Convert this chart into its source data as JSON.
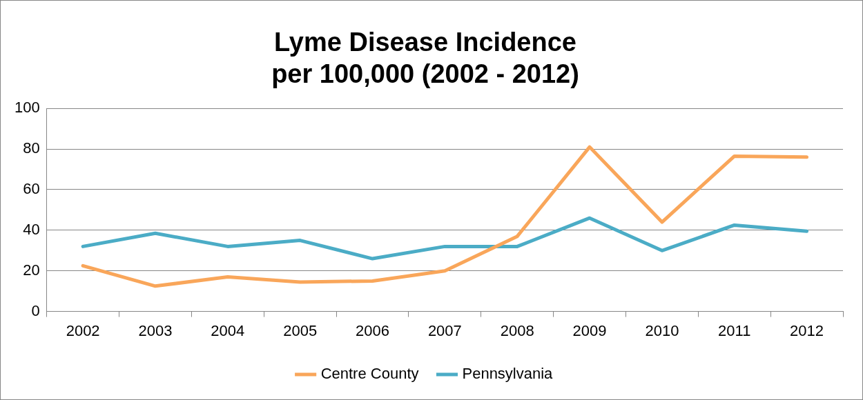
{
  "chart_data": {
    "type": "line",
    "title": "Lyme Disease Incidence per 100,000 (2002 - 2012)",
    "categories": [
      "2002",
      "2003",
      "2004",
      "2005",
      "2006",
      "2007",
      "2008",
      "2009",
      "2010",
      "2011",
      "2012"
    ],
    "series": [
      {
        "name": "Centre County",
        "color": "#f9a65a",
        "values": [
          22.5,
          12.5,
          17,
          14.5,
          15,
          20,
          37,
          81,
          44,
          76.5,
          76
        ]
      },
      {
        "name": "Pennsylvania",
        "color": "#4bacc6",
        "values": [
          32,
          38.5,
          32,
          35,
          26,
          32,
          32,
          46,
          30,
          42.5,
          39.5
        ]
      }
    ],
    "ylim": [
      0,
      100
    ],
    "yticks": [
      0,
      20,
      40,
      60,
      80,
      100
    ],
    "grid": "y",
    "legend": "bottom",
    "marker": "none",
    "line_style": "solid"
  }
}
